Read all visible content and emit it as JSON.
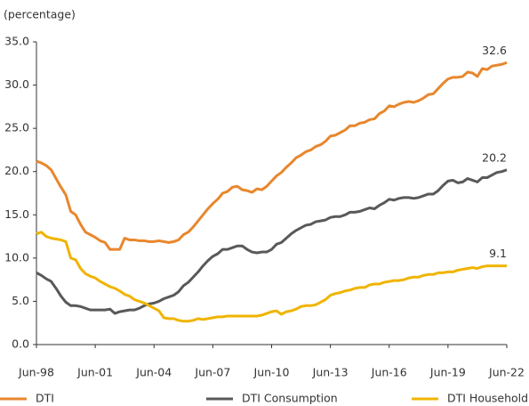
{
  "chart_data": {
    "type": "line",
    "y_label": "(percentage)",
    "categories": [
      "Jun-98",
      null,
      null,
      null,
      null,
      null,
      null,
      null,
      null,
      null,
      null,
      null,
      "Jun-01",
      null,
      null,
      null,
      null,
      null,
      null,
      null,
      null,
      null,
      null,
      null,
      "Jun-04",
      null,
      null,
      null,
      null,
      null,
      null,
      null,
      null,
      null,
      null,
      null,
      "Jun-07",
      null,
      null,
      null,
      null,
      null,
      null,
      null,
      null,
      null,
      null,
      null,
      "Jun-10",
      null,
      null,
      null,
      null,
      null,
      null,
      null,
      null,
      null,
      null,
      null,
      "Jun-13",
      null,
      null,
      null,
      null,
      null,
      null,
      null,
      null,
      null,
      null,
      null,
      "Jun-16",
      null,
      null,
      null,
      null,
      null,
      null,
      null,
      null,
      null,
      null,
      null,
      "Jun-19",
      null,
      null,
      null,
      null,
      null,
      null,
      null,
      null,
      null,
      null,
      null,
      "Jun-22"
    ],
    "ylim": [
      0,
      35
    ],
    "yticks": [
      {
        "value": 0,
        "label": "0.0"
      },
      {
        "value": 5,
        "label": "5.0"
      },
      {
        "value": 10,
        "label": "10.0"
      },
      {
        "value": 15,
        "label": "15.0"
      },
      {
        "value": 20,
        "label": "20.0"
      },
      {
        "value": 25,
        "label": "25.0"
      },
      {
        "value": 30,
        "label": "30.0"
      },
      {
        "value": 35,
        "label": "35.0"
      }
    ],
    "grid": false,
    "legend": "bottom",
    "series": [
      {
        "name": "DTI",
        "color": "#e8872d",
        "values": [
          21.2,
          21.0,
          20.7,
          20.2,
          19.2,
          18.2,
          17.3,
          15.4,
          15.0,
          13.9,
          13.0,
          12.7,
          12.4,
          12.0,
          11.8,
          11.0,
          11.0,
          11.0,
          12.3,
          12.1,
          12.1,
          12.0,
          12.0,
          11.9,
          11.9,
          12.0,
          11.9,
          11.8,
          11.9,
          12.1,
          12.7,
          13.0,
          13.6,
          14.3,
          15.0,
          15.7,
          16.3,
          16.8,
          17.5,
          17.7,
          18.2,
          18.3,
          17.9,
          17.8,
          17.6,
          18.0,
          17.9,
          18.3,
          18.9,
          19.5,
          19.9,
          20.5,
          21.0,
          21.6,
          21.9,
          22.3,
          22.5,
          22.9,
          23.1,
          23.5,
          24.1,
          24.2,
          24.5,
          24.8,
          25.3,
          25.3,
          25.6,
          25.7,
          26.0,
          26.1,
          26.7,
          27.0,
          27.6,
          27.5,
          27.8,
          28.0,
          28.1,
          28.0,
          28.2,
          28.5,
          28.9,
          29.0,
          29.6,
          30.2,
          30.7,
          30.9,
          30.9,
          31.0,
          31.5,
          31.4,
          31.0,
          31.9,
          31.8,
          32.2,
          32.3,
          32.4,
          32.6
        ]
      },
      {
        "name": "DTI Consumption",
        "color": "#595959",
        "values": [
          8.3,
          8.0,
          7.6,
          7.3,
          6.5,
          5.6,
          4.9,
          4.5,
          4.5,
          4.4,
          4.2,
          4.0,
          4.0,
          4.0,
          4.0,
          4.1,
          3.6,
          3.8,
          3.9,
          4.0,
          4.0,
          4.2,
          4.5,
          4.7,
          4.8,
          5.0,
          5.3,
          5.5,
          5.7,
          6.1,
          6.8,
          7.2,
          7.8,
          8.4,
          9.1,
          9.7,
          10.2,
          10.5,
          11.0,
          11.0,
          11.2,
          11.4,
          11.4,
          11.0,
          10.7,
          10.6,
          10.7,
          10.7,
          11.0,
          11.6,
          11.8,
          12.3,
          12.8,
          13.2,
          13.5,
          13.8,
          13.9,
          14.2,
          14.3,
          14.4,
          14.7,
          14.8,
          14.8,
          15.0,
          15.3,
          15.3,
          15.4,
          15.6,
          15.8,
          15.7,
          16.1,
          16.4,
          16.8,
          16.7,
          16.9,
          17.0,
          17.0,
          16.9,
          17.0,
          17.2,
          17.4,
          17.4,
          17.8,
          18.4,
          18.9,
          19.0,
          18.7,
          18.8,
          19.2,
          19.0,
          18.8,
          19.3,
          19.3,
          19.6,
          19.9,
          20.0,
          20.2
        ]
      },
      {
        "name": "DTI Household",
        "color": "#f0b400",
        "values": [
          12.8,
          13.0,
          12.5,
          12.3,
          12.2,
          12.1,
          11.9,
          10.0,
          9.8,
          8.8,
          8.2,
          7.9,
          7.7,
          7.3,
          7.0,
          6.7,
          6.5,
          6.2,
          5.8,
          5.6,
          5.2,
          5.0,
          4.8,
          4.5,
          4.2,
          3.9,
          3.1,
          3.0,
          3.0,
          2.8,
          2.7,
          2.7,
          2.8,
          3.0,
          2.9,
          3.0,
          3.1,
          3.2,
          3.2,
          3.3,
          3.3,
          3.3,
          3.3,
          3.3,
          3.3,
          3.3,
          3.4,
          3.6,
          3.8,
          3.9,
          3.5,
          3.8,
          3.9,
          4.1,
          4.4,
          4.5,
          4.5,
          4.6,
          4.9,
          5.2,
          5.7,
          5.9,
          6.0,
          6.2,
          6.3,
          6.5,
          6.6,
          6.6,
          6.9,
          7.0,
          7.0,
          7.2,
          7.3,
          7.4,
          7.4,
          7.5,
          7.7,
          7.8,
          7.8,
          8.0,
          8.1,
          8.1,
          8.3,
          8.3,
          8.4,
          8.4,
          8.6,
          8.7,
          8.8,
          8.9,
          8.8,
          9.0,
          9.1,
          9.1,
          9.1,
          9.1,
          9.1
        ]
      }
    ]
  }
}
